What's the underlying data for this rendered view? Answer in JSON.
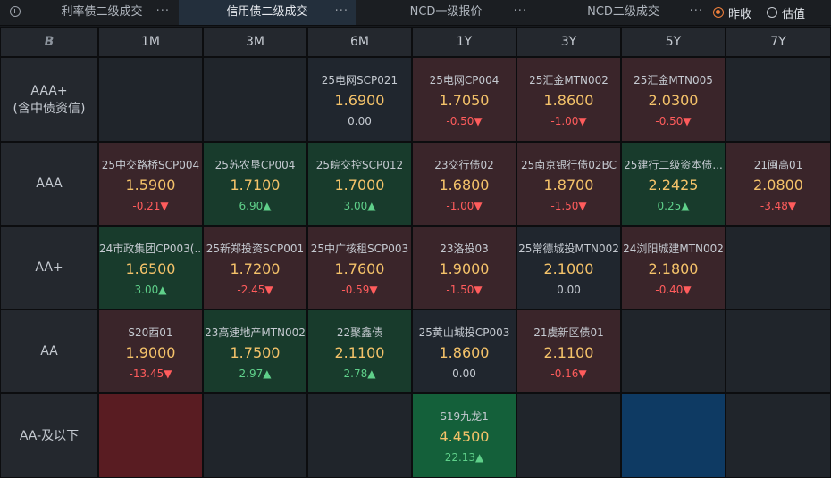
{
  "tabs": [
    {
      "label": "利率债二级成交",
      "more": "···"
    },
    {
      "label": "信用债二级成交",
      "more": "···"
    },
    {
      "label": "NCD一级报价",
      "more": "···"
    },
    {
      "label": "NCD二级成交",
      "more": "···"
    }
  ],
  "radio": {
    "prev_close": "昨收",
    "estimate": "估值",
    "selected": "昨收"
  },
  "header": {
    "logo": "B",
    "cols": [
      "1M",
      "3M",
      "6M",
      "1Y",
      "3Y",
      "5Y",
      "7Y"
    ]
  },
  "rows": [
    {
      "label": "AAA+",
      "sublabel": "(含中债资信)",
      "cells": [
        null,
        null,
        {
          "name": "25电网SCP021",
          "yield": "1.6900",
          "change": "0.00",
          "trend": "flat"
        },
        {
          "name": "25电网CP004",
          "yield": "1.7050",
          "change": "-0.50▼",
          "trend": "down"
        },
        {
          "name": "25汇金MTN002",
          "yield": "1.8600",
          "change": "-1.00▼",
          "trend": "down"
        },
        {
          "name": "25汇金MTN005",
          "yield": "2.0300",
          "change": "-0.50▼",
          "trend": "down"
        },
        null
      ]
    },
    {
      "label": "AAA",
      "sublabel": "",
      "cells": [
        {
          "name": "25中交路桥SCP004",
          "yield": "1.5900",
          "change": "-0.21▼",
          "trend": "down"
        },
        {
          "name": "25苏农垦CP004",
          "yield": "1.7100",
          "change": "6.90▲",
          "trend": "up"
        },
        {
          "name": "25皖交控SCP012",
          "yield": "1.7000",
          "change": "3.00▲",
          "trend": "up"
        },
        {
          "name": "23交行债02",
          "yield": "1.6800",
          "change": "-1.00▼",
          "trend": "down"
        },
        {
          "name": "25南京银行债02BC",
          "yield": "1.8700",
          "change": "-1.50▼",
          "trend": "down"
        },
        {
          "name": "25建行二级资本债...",
          "yield": "2.2425",
          "change": "0.25▲",
          "trend": "up"
        },
        {
          "name": "21闽高01",
          "yield": "2.0800",
          "change": "-3.48▼",
          "trend": "down"
        }
      ]
    },
    {
      "label": "AA+",
      "sublabel": "",
      "cells": [
        {
          "name": "24市政集团CP003(...",
          "yield": "1.6500",
          "change": "3.00▲",
          "trend": "up"
        },
        {
          "name": "25新郑投资SCP001",
          "yield": "1.7200",
          "change": "-2.45▼",
          "trend": "down"
        },
        {
          "name": "25中广核租SCP003",
          "yield": "1.7600",
          "change": "-0.59▼",
          "trend": "down"
        },
        {
          "name": "23洛投03",
          "yield": "1.9000",
          "change": "-1.50▼",
          "trend": "down"
        },
        {
          "name": "25常德城投MTN002",
          "yield": "2.1000",
          "change": "0.00",
          "trend": "flat"
        },
        {
          "name": "24浏阳城建MTN002",
          "yield": "2.1800",
          "change": "-0.40▼",
          "trend": "down"
        },
        null
      ]
    },
    {
      "label": "AA",
      "sublabel": "",
      "cells": [
        {
          "name": "S20酉01",
          "yield": "1.9000",
          "change": "-13.45▼",
          "trend": "down"
        },
        {
          "name": "23高速地产MTN002",
          "yield": "1.7500",
          "change": "2.97▲",
          "trend": "up"
        },
        {
          "name": "22聚鑫债",
          "yield": "2.1100",
          "change": "2.78▲",
          "trend": "up"
        },
        {
          "name": "25黄山城投CP003",
          "yield": "1.8600",
          "change": "0.00",
          "trend": "flat"
        },
        {
          "name": "21虞新区债01",
          "yield": "2.1100",
          "change": "-0.16▼",
          "trend": "down"
        },
        null,
        null
      ]
    },
    {
      "label": "AA-及以下",
      "sublabel": "",
      "cells": [
        null,
        null,
        null,
        {
          "name": "S19九龙1",
          "yield": "4.4500",
          "change": "22.13▲",
          "trend": "up"
        },
        null,
        null,
        null
      ]
    }
  ]
}
